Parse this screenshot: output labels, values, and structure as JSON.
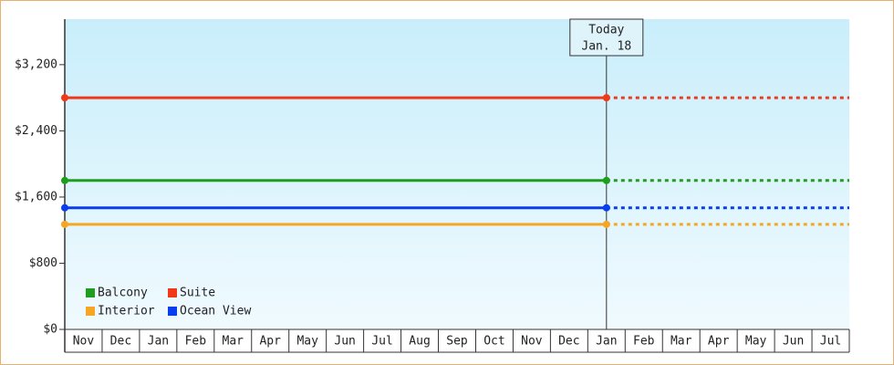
{
  "chart_data": {
    "type": "line",
    "categories": [
      "Nov",
      "Dec",
      "Jan",
      "Feb",
      "Mar",
      "Apr",
      "May",
      "Jun",
      "Jul",
      "Aug",
      "Sep",
      "Oct",
      "Nov",
      "Dec",
      "Jan",
      "Feb",
      "Mar",
      "Apr",
      "May",
      "Jun",
      "Jul"
    ],
    "series": [
      {
        "name": "Balcony",
        "color": "#1e9e1e",
        "value": 1800
      },
      {
        "name": "Suite",
        "color": "#f03a17",
        "value": 2800
      },
      {
        "name": "Interior",
        "color": "#f5a623",
        "value": 1270
      },
      {
        "name": "Ocean View",
        "color": "#0a3cf0",
        "value": 1470
      }
    ],
    "ylim": [
      0,
      3750
    ],
    "yticks": [
      {
        "value": 0,
        "label": "$0"
      },
      {
        "value": 800,
        "label": "$800"
      },
      {
        "value": 1600,
        "label": "$1,600"
      },
      {
        "value": 2400,
        "label": "$2,400"
      },
      {
        "value": 3200,
        "label": "$3,200"
      }
    ],
    "annotation": {
      "title": "Today",
      "date": "Jan. 18"
    },
    "legend": "lower-left"
  }
}
